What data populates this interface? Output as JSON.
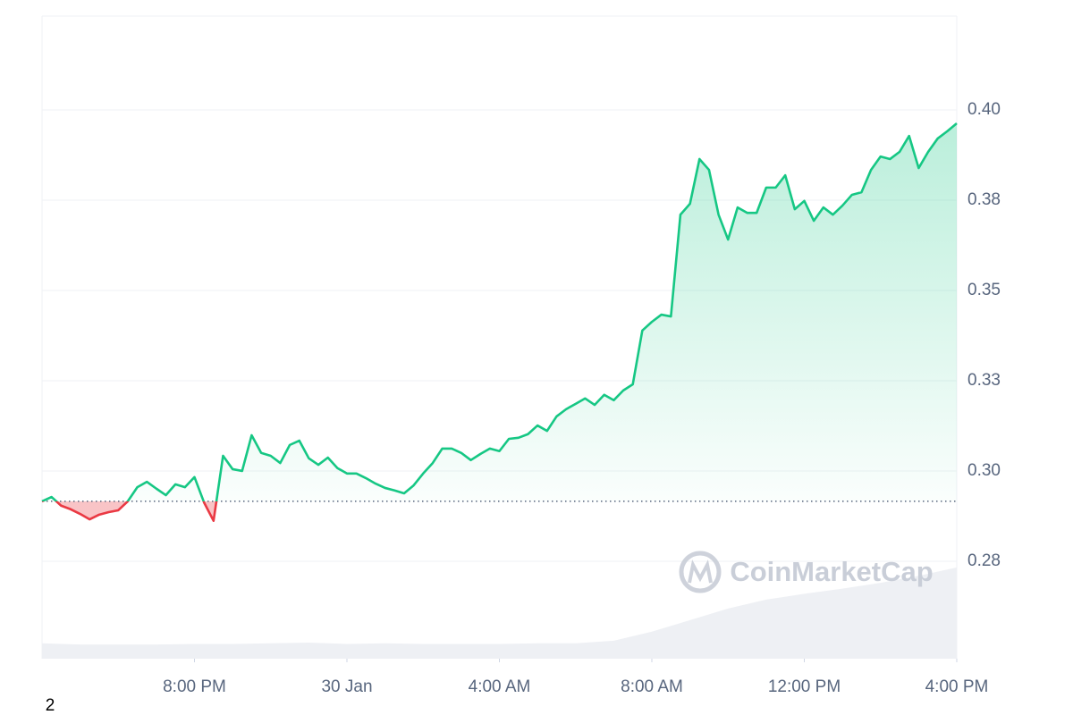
{
  "chart_data": {
    "type": "area",
    "watermark": "CoinMarketCap",
    "footnote": "2",
    "baseline": 0.2916,
    "up_color": "#16c784",
    "down_color": "#ea3943",
    "grid": true,
    "xlim": [
      0,
      24
    ],
    "xticks": [
      {
        "value": 4,
        "label": "8:00 PM"
      },
      {
        "value": 8,
        "label": "30 Jan"
      },
      {
        "value": 12,
        "label": "4:00 AM"
      },
      {
        "value": 16,
        "label": "8:00 AM"
      },
      {
        "value": 20,
        "label": "12:00 PM"
      },
      {
        "value": 24,
        "label": "4:00 PM"
      }
    ],
    "ylim": [
      0.248,
      0.426
    ],
    "yticks": [
      {
        "value": 0.275,
        "label": "0.28"
      },
      {
        "value": 0.3,
        "label": "0.30"
      },
      {
        "value": 0.325,
        "label": "0.33"
      },
      {
        "value": 0.35,
        "label": "0.35"
      },
      {
        "value": 0.375,
        "label": "0.38"
      },
      {
        "value": 0.4,
        "label": "0.40"
      }
    ],
    "x": [
      0,
      0.25,
      0.5,
      0.75,
      1,
      1.25,
      1.5,
      1.75,
      2,
      2.25,
      2.5,
      2.75,
      3,
      3.25,
      3.5,
      3.75,
      4,
      4.25,
      4.5,
      4.75,
      5,
      5.25,
      5.5,
      5.75,
      6,
      6.25,
      6.5,
      6.75,
      7,
      7.25,
      7.5,
      7.75,
      8,
      8.25,
      8.5,
      8.75,
      9,
      9.25,
      9.5,
      9.75,
      10,
      10.25,
      10.5,
      10.75,
      11,
      11.25,
      11.5,
      11.75,
      12,
      12.25,
      12.5,
      12.75,
      13,
      13.25,
      13.5,
      13.75,
      14,
      14.25,
      14.5,
      14.75,
      15,
      15.25,
      15.5,
      15.75,
      16,
      16.25,
      16.5,
      16.75,
      17,
      17.25,
      17.5,
      17.75,
      18,
      18.25,
      18.5,
      18.75,
      19,
      19.25,
      19.5,
      19.75,
      20,
      20.25,
      20.5,
      20.75,
      21,
      21.25,
      21.5,
      21.75,
      22,
      22.25,
      22.5,
      22.75,
      23,
      23.25,
      23.5,
      23.75,
      24
    ],
    "values": [
      0.2916,
      0.2928,
      0.2904,
      0.2894,
      0.2881,
      0.2866,
      0.2879,
      0.2886,
      0.2891,
      0.2916,
      0.2955,
      0.297,
      0.2951,
      0.2933,
      0.2963,
      0.2955,
      0.2983,
      0.2913,
      0.2862,
      0.3042,
      0.3005,
      0.3,
      0.3099,
      0.305,
      0.3042,
      0.3022,
      0.3072,
      0.3084,
      0.3035,
      0.3017,
      0.3037,
      0.3008,
      0.2993,
      0.2993,
      0.298,
      0.2965,
      0.2953,
      0.2946,
      0.2938,
      0.296,
      0.2993,
      0.3022,
      0.3062,
      0.3062,
      0.305,
      0.303,
      0.3047,
      0.3062,
      0.3055,
      0.3089,
      0.3092,
      0.3102,
      0.3126,
      0.3111,
      0.3151,
      0.3171,
      0.3186,
      0.3201,
      0.3183,
      0.3211,
      0.3196,
      0.3223,
      0.324,
      0.3389,
      0.3413,
      0.3433,
      0.3428,
      0.371,
      0.374,
      0.3864,
      0.3834,
      0.371,
      0.3641,
      0.373,
      0.3715,
      0.3715,
      0.3785,
      0.3785,
      0.3819,
      0.3725,
      0.3748,
      0.3693,
      0.373,
      0.371,
      0.3735,
      0.3765,
      0.3772,
      0.3834,
      0.3871,
      0.3864,
      0.3884,
      0.3928,
      0.3839,
      0.3884,
      0.3921,
      0.3941,
      0.3963
    ],
    "volume": {
      "color": "#eef0f4",
      "vlim": [
        0,
        100
      ],
      "x": [
        0,
        1,
        2,
        3,
        4,
        5,
        6,
        7,
        8,
        9,
        10,
        11,
        12,
        13,
        14,
        15,
        16,
        17,
        18,
        19,
        20,
        21,
        22,
        23,
        24
      ],
      "values": [
        2.4,
        2.2,
        2.2,
        2.2,
        2.3,
        2.3,
        2.4,
        2.5,
        2.3,
        2.4,
        2.3,
        2.3,
        2.3,
        2.4,
        2.4,
        2.8,
        4.2,
        6,
        7.8,
        9.2,
        10.1,
        10.9,
        11.8,
        12.9,
        14.2
      ]
    }
  }
}
